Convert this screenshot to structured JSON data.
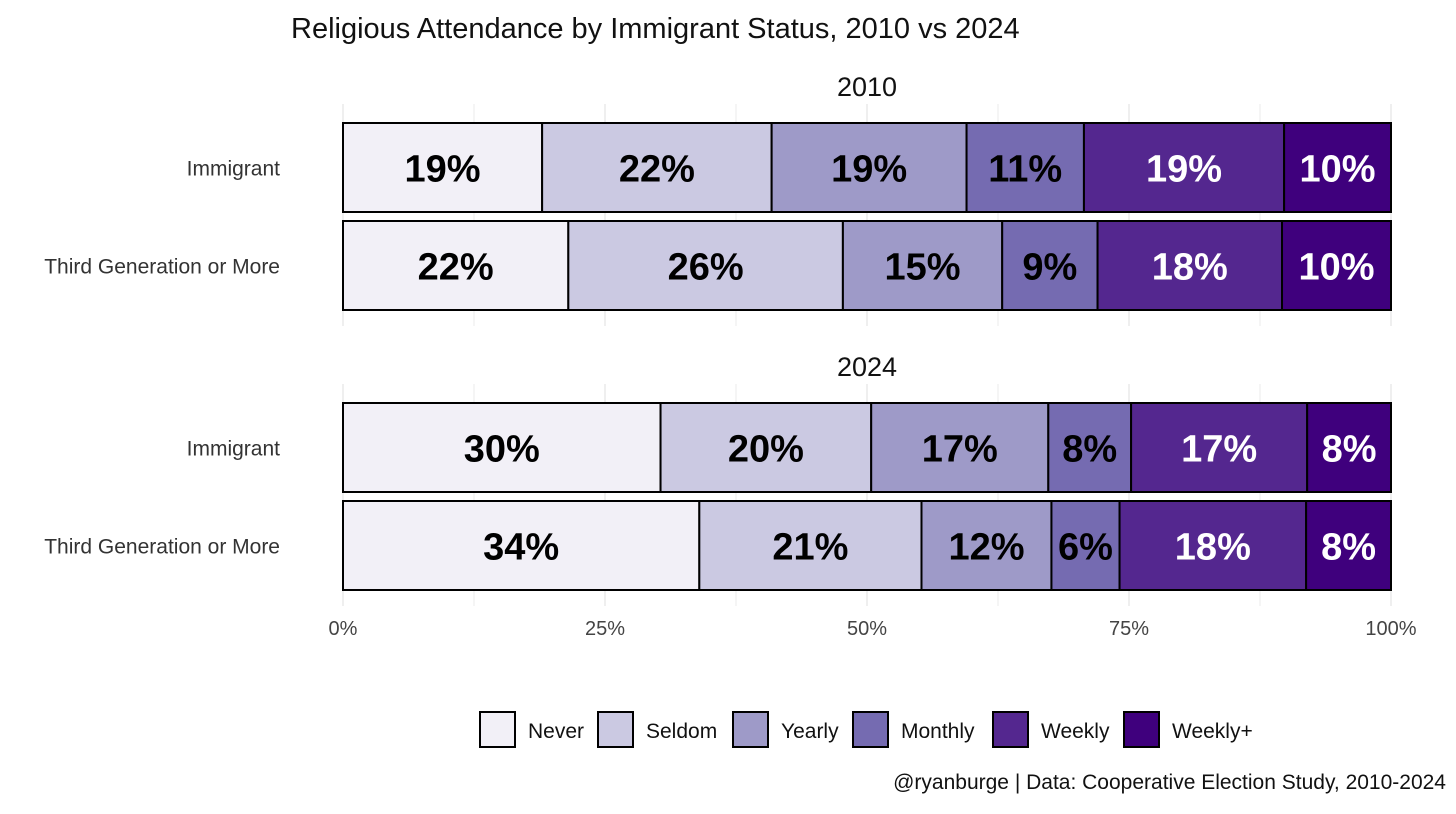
{
  "chart_data": {
    "type": "bar",
    "orientation": "horizontal-stacked",
    "title": "Religious Attendance by Immigrant Status, 2010 vs 2024",
    "caption": "@ryanburge | Data: Cooperative Election Study, 2010-2024",
    "xlim": [
      0,
      100
    ],
    "x_ticks": [
      "0%",
      "25%",
      "50%",
      "75%",
      "100%"
    ],
    "grid": true,
    "legend_position": "bottom",
    "categories": [
      "Never",
      "Seldom",
      "Yearly",
      "Monthly",
      "Weekly",
      "Weekly+"
    ],
    "colors": [
      "#f2f0f7",
      "#cbc9e2",
      "#9e9ac8",
      "#756bb1",
      "#54278f",
      "#3f007d"
    ],
    "label_colors": [
      "#000000",
      "#000000",
      "#000000",
      "#000000",
      "#ffffff",
      "#ffffff"
    ],
    "panels": [
      {
        "title": "2010",
        "rows": [
          {
            "label": "Immigrant",
            "values": [
              19.0,
              21.9,
              18.6,
              11.2,
              19.1,
              10.2
            ],
            "labels": [
              "19%",
              "22%",
              "19%",
              "11%",
              "19%",
              "10%"
            ]
          },
          {
            "label": "Third Generation or More",
            "values": [
              21.5,
              26.2,
              15.2,
              9.1,
              17.6,
              10.4
            ],
            "labels": [
              "22%",
              "26%",
              "15%",
              "9%",
              "18%",
              "10%"
            ]
          }
        ]
      },
      {
        "title": "2024",
        "rows": [
          {
            "label": "Immigrant",
            "values": [
              30.3,
              20.1,
              16.9,
              7.9,
              16.8,
              8.0
            ],
            "labels": [
              "30%",
              "20%",
              "17%",
              "8%",
              "17%",
              "8%"
            ]
          },
          {
            "label": "Third Generation or More",
            "values": [
              34.0,
              21.2,
              12.4,
              6.5,
              17.8,
              8.1
            ],
            "labels": [
              "34%",
              "21%",
              "12%",
              "6%",
              "18%",
              "8%"
            ]
          }
        ]
      }
    ]
  }
}
